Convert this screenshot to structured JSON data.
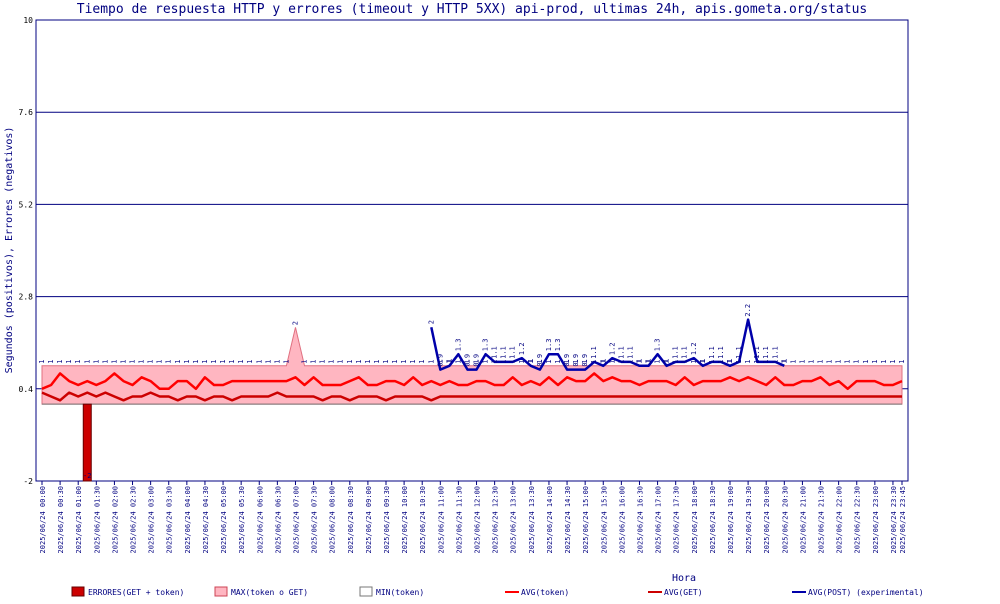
{
  "chart_data": {
    "type": "line",
    "title": "Tiempo de respuesta HTTP y errores (timeout y HTTP 5XX) api-prod, ultimas 24h, apis.gometa.org/status",
    "xlabel": "Hora",
    "ylabel": "Segundos (positivos), Errores (negativos)",
    "ylim": [
      -2,
      10
    ],
    "yticks": [
      -2,
      0.4,
      2.8,
      5.2,
      7.6,
      10
    ],
    "ytick_labels": [
      "-2",
      "0.4",
      "2.8",
      "5.2",
      "7.6",
      "10"
    ],
    "grid": true,
    "legend_position": "bottom",
    "x": [
      "2025/06/24 00:00",
      "2025/06/24 00:15",
      "2025/06/24 00:30",
      "2025/06/24 00:45",
      "2025/06/24 01:00",
      "2025/06/24 01:15",
      "2025/06/24 01:30",
      "2025/06/24 01:45",
      "2025/06/24 02:00",
      "2025/06/24 02:15",
      "2025/06/24 02:30",
      "2025/06/24 02:45",
      "2025/06/24 03:00",
      "2025/06/24 03:15",
      "2025/06/24 03:30",
      "2025/06/24 03:45",
      "2025/06/24 04:00",
      "2025/06/24 04:15",
      "2025/06/24 04:30",
      "2025/06/24 04:45",
      "2025/06/24 05:00",
      "2025/06/24 05:15",
      "2025/06/24 05:30",
      "2025/06/24 05:45",
      "2025/06/24 06:00",
      "2025/06/24 06:15",
      "2025/06/24 06:30",
      "2025/06/24 06:45",
      "2025/06/24 07:00",
      "2025/06/24 07:15",
      "2025/06/24 07:30",
      "2025/06/24 07:45",
      "2025/06/24 08:00",
      "2025/06/24 08:15",
      "2025/06/24 08:30",
      "2025/06/24 08:45",
      "2025/06/24 09:00",
      "2025/06/24 09:15",
      "2025/06/24 09:30",
      "2025/06/24 09:45",
      "2025/06/24 10:00",
      "2025/06/24 10:15",
      "2025/06/24 10:30",
      "2025/06/24 10:45",
      "2025/06/24 11:00",
      "2025/06/24 11:15",
      "2025/06/24 11:30",
      "2025/06/24 11:45",
      "2025/06/24 12:00",
      "2025/06/24 12:15",
      "2025/06/24 12:30",
      "2025/06/24 12:45",
      "2025/06/24 13:00",
      "2025/06/24 13:15",
      "2025/06/24 13:30",
      "2025/06/24 13:45",
      "2025/06/24 14:00",
      "2025/06/24 14:15",
      "2025/06/24 14:30",
      "2025/06/24 14:45",
      "2025/06/24 15:00",
      "2025/06/24 15:15",
      "2025/06/24 15:30",
      "2025/06/24 15:45",
      "2025/06/24 16:00",
      "2025/06/24 16:15",
      "2025/06/24 16:30",
      "2025/06/24 16:45",
      "2025/06/24 17:00",
      "2025/06/24 17:15",
      "2025/06/24 17:30",
      "2025/06/24 17:45",
      "2025/06/24 18:00",
      "2025/06/24 18:15",
      "2025/06/24 18:30",
      "2025/06/24 18:45",
      "2025/06/24 19:00",
      "2025/06/24 19:15",
      "2025/06/24 19:30",
      "2025/06/24 19:45",
      "2025/06/24 20:00",
      "2025/06/24 20:15",
      "2025/06/24 20:30",
      "2025/06/24 20:45",
      "2025/06/24 21:00",
      "2025/06/24 21:15",
      "2025/06/24 21:30",
      "2025/06/24 21:45",
      "2025/06/24 22:00",
      "2025/06/24 22:15",
      "2025/06/24 22:30",
      "2025/06/24 22:45",
      "2025/06/24 23:00",
      "2025/06/24 23:15",
      "2025/06/24 23:30",
      "2025/06/24 23:45"
    ],
    "x_tick_labels": [
      "2025/06/24 00:00",
      "2025/06/24 00:30",
      "2025/06/24 01:00",
      "2025/06/24 01:30",
      "2025/06/24 02:00",
      "2025/06/24 02:30",
      "2025/06/24 03:00",
      "2025/06/24 03:30",
      "2025/06/24 04:00",
      "2025/06/24 04:30",
      "2025/06/24 05:00",
      "2025/06/24 05:30",
      "2025/06/24 06:00",
      "2025/06/24 06:30",
      "2025/06/24 07:00",
      "2025/06/24 07:30",
      "2025/06/24 08:00",
      "2025/06/24 08:30",
      "2025/06/24 09:00",
      "2025/06/24 09:30",
      "2025/06/24 10:00",
      "2025/06/24 10:30",
      "2025/06/24 11:00",
      "2025/06/24 11:30",
      "2025/06/24 12:00",
      "2025/06/24 12:30",
      "2025/06/24 13:00",
      "2025/06/24 13:30",
      "2025/06/24 14:00",
      "2025/06/24 14:30",
      "2025/06/24 15:00",
      "2025/06/24 15:30",
      "2025/06/24 16:00",
      "2025/06/24 16:30",
      "2025/06/24 17:00",
      "2025/06/24 17:30",
      "2025/06/24 18:00",
      "2025/06/24 18:30",
      "2025/06/24 19:00",
      "2025/06/24 19:30",
      "2025/06/24 20:00",
      "2025/06/24 20:30",
      "2025/06/24 21:00",
      "2025/06/24 21:30",
      "2025/06/24 22:00",
      "2025/06/24 22:30",
      "2025/06/24 23:00",
      "2025/06/24 23:30",
      "2025/06/24 23:45"
    ],
    "series": [
      {
        "name": "ERRORES(GET + token)",
        "kind": "bar",
        "color": "#cc0000",
        "values": [
          0,
          0,
          0,
          0,
          0,
          -2,
          0,
          0,
          0,
          0,
          0,
          0,
          0,
          0,
          0,
          0,
          0,
          0,
          0,
          0,
          0,
          0,
          0,
          0,
          0,
          0,
          0,
          0,
          0,
          0,
          0,
          0,
          0,
          0,
          0,
          0,
          0,
          0,
          0,
          0,
          0,
          0,
          0,
          0,
          0,
          0,
          0,
          0,
          0,
          0,
          0,
          0,
          0,
          0,
          0,
          0,
          0,
          0,
          0,
          0,
          0,
          0,
          0,
          0,
          0,
          0,
          0,
          0,
          0,
          0,
          0,
          0,
          0,
          0,
          0,
          0,
          0,
          0,
          0,
          0,
          0,
          0,
          0,
          0,
          0,
          0,
          0,
          0,
          0,
          0,
          0,
          0,
          0,
          0,
          0,
          0
        ]
      },
      {
        "name": "MAX(token o GET)",
        "kind": "area",
        "color": "#ffb6c1",
        "values": [
          1,
          1,
          1,
          1,
          1,
          1,
          1,
          1,
          1,
          1,
          1,
          1,
          1,
          1,
          1,
          1,
          1,
          1,
          1,
          1,
          1,
          1,
          1,
          1,
          1,
          1,
          1,
          1,
          2,
          1,
          1,
          1,
          1,
          1,
          1,
          1,
          1,
          1,
          1,
          1,
          1,
          1,
          1,
          1,
          1,
          1,
          1,
          1,
          1,
          1,
          1,
          1,
          1,
          1,
          1,
          1,
          1,
          1,
          1,
          1,
          1,
          1,
          1,
          1,
          1,
          1,
          1,
          1,
          1,
          1,
          1,
          1,
          1,
          1,
          1,
          1,
          1,
          1,
          1,
          1,
          1,
          1,
          1,
          1,
          1,
          1,
          1,
          1,
          1,
          1,
          1,
          1,
          1,
          1,
          1,
          1
        ]
      },
      {
        "name": "MIN(token)",
        "kind": "area",
        "color": "#ffffff",
        "values": [
          0,
          0,
          0,
          0,
          0,
          0,
          0,
          0,
          0,
          0,
          0,
          0,
          0,
          0,
          0,
          0,
          0,
          0,
          0,
          0,
          0,
          0,
          0,
          0,
          0,
          0,
          0,
          0,
          0,
          0,
          0,
          0,
          0,
          0,
          0,
          0,
          0,
          0,
          0,
          0,
          0,
          0,
          0,
          0,
          0,
          0,
          0,
          0,
          0,
          0,
          0,
          0,
          0,
          0,
          0,
          0,
          0,
          0,
          0,
          0,
          0,
          0,
          0,
          0,
          0,
          0,
          0,
          0,
          0,
          0,
          0,
          0,
          0,
          0,
          0,
          0,
          0,
          0,
          0,
          0,
          0,
          0,
          0,
          0,
          0,
          0,
          0,
          0,
          0,
          0,
          0,
          0,
          0,
          0,
          0,
          0
        ]
      },
      {
        "name": "AVG(token)",
        "kind": "line",
        "color": "#ff0000",
        "values": [
          0.4,
          0.5,
          0.8,
          0.6,
          0.5,
          0.6,
          0.5,
          0.6,
          0.8,
          0.6,
          0.5,
          0.7,
          0.6,
          0.4,
          0.4,
          0.6,
          0.6,
          0.4,
          0.7,
          0.5,
          0.5,
          0.6,
          0.6,
          0.6,
          0.6,
          0.6,
          0.6,
          0.6,
          0.7,
          0.5,
          0.7,
          0.5,
          0.5,
          0.5,
          0.6,
          0.7,
          0.5,
          0.5,
          0.6,
          0.6,
          0.5,
          0.7,
          0.5,
          0.6,
          0.5,
          0.6,
          0.5,
          0.5,
          0.6,
          0.6,
          0.5,
          0.5,
          0.7,
          0.5,
          0.6,
          0.5,
          0.7,
          0.5,
          0.7,
          0.6,
          0.6,
          0.8,
          0.6,
          0.7,
          0.6,
          0.6,
          0.5,
          0.6,
          0.6,
          0.6,
          0.5,
          0.7,
          0.5,
          0.6,
          0.6,
          0.6,
          0.7,
          0.6,
          0.7,
          0.6,
          0.5,
          0.7,
          0.5,
          0.5,
          0.6,
          0.6,
          0.7,
          0.5,
          0.6,
          0.4,
          0.6,
          0.6,
          0.6,
          0.5,
          0.5,
          0.6
        ]
      },
      {
        "name": "AVG(GET)",
        "kind": "line",
        "color": "#cc0000",
        "values": [
          0.3,
          0.2,
          0.1,
          0.3,
          0.2,
          0.3,
          0.2,
          0.3,
          0.2,
          0.1,
          0.2,
          0.2,
          0.3,
          0.2,
          0.2,
          0.1,
          0.2,
          0.2,
          0.1,
          0.2,
          0.2,
          0.1,
          0.2,
          0.2,
          0.2,
          0.2,
          0.3,
          0.2,
          0.2,
          0.2,
          0.2,
          0.1,
          0.2,
          0.2,
          0.1,
          0.2,
          0.2,
          0.2,
          0.1,
          0.2,
          0.2,
          0.2,
          0.2,
          0.1,
          0.2,
          0.2,
          0.2,
          0.2,
          0.2,
          0.2,
          0.2,
          0.2,
          0.2,
          0.2,
          0.2,
          0.2,
          0.2,
          0.2,
          0.2,
          0.2,
          0.2,
          0.2,
          0.2,
          0.2,
          0.2,
          0.2,
          0.2,
          0.2,
          0.2,
          0.2,
          0.2,
          0.2,
          0.2,
          0.2,
          0.2,
          0.2,
          0.2,
          0.2,
          0.2,
          0.2,
          0.2,
          0.2,
          0.2,
          0.2,
          0.2,
          0.2,
          0.2,
          0.2,
          0.2,
          0.2,
          0.2,
          0.2,
          0.2,
          0.2,
          0.2,
          0.2
        ]
      },
      {
        "name": "AVG(POST) (experimental)",
        "kind": "line",
        "color": "#0000aa",
        "values": [
          null,
          null,
          null,
          null,
          null,
          null,
          null,
          null,
          null,
          null,
          null,
          null,
          null,
          null,
          null,
          null,
          null,
          null,
          null,
          null,
          null,
          null,
          null,
          null,
          null,
          null,
          null,
          null,
          null,
          null,
          null,
          null,
          null,
          null,
          null,
          null,
          null,
          null,
          null,
          null,
          null,
          null,
          null,
          2.0,
          0.9,
          1.0,
          1.3,
          0.9,
          0.9,
          1.3,
          1.1,
          1.1,
          1.1,
          1.2,
          1.0,
          0.9,
          1.3,
          1.3,
          0.9,
          0.9,
          0.9,
          1.1,
          1.0,
          1.2,
          1.1,
          1.1,
          1.0,
          1.0,
          1.3,
          1.0,
          1.1,
          1.1,
          1.2,
          1.0,
          1.1,
          1.1,
          1.0,
          1.1,
          2.2,
          1.1,
          1.1,
          1.1,
          1.0,
          null,
          null,
          null,
          null,
          null,
          null,
          null,
          null,
          null,
          null,
          null,
          null,
          null
        ]
      }
    ]
  }
}
